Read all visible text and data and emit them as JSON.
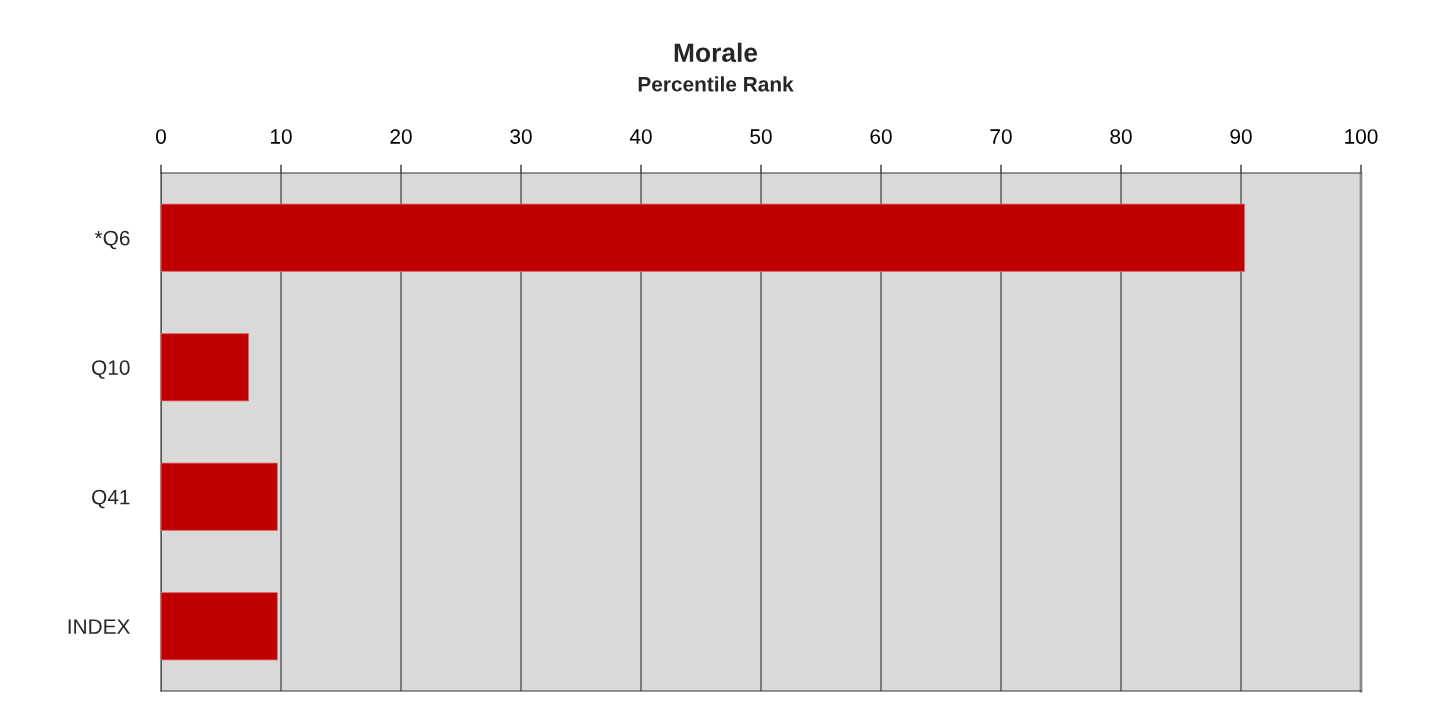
{
  "chart_data": {
    "type": "bar",
    "orientation": "horizontal",
    "title": "Morale",
    "subtitle": "Percentile Rank",
    "categories": [
      "*Q6",
      "Q10",
      "Q41",
      "INDEX"
    ],
    "values": [
      90.3,
      7.3,
      9.7,
      9.7
    ],
    "color": "#c00000",
    "xlim": [
      0,
      100
    ],
    "xticks": [
      0,
      10,
      20,
      30,
      40,
      50,
      60,
      70,
      80,
      90,
      100
    ],
    "grid": "x"
  }
}
